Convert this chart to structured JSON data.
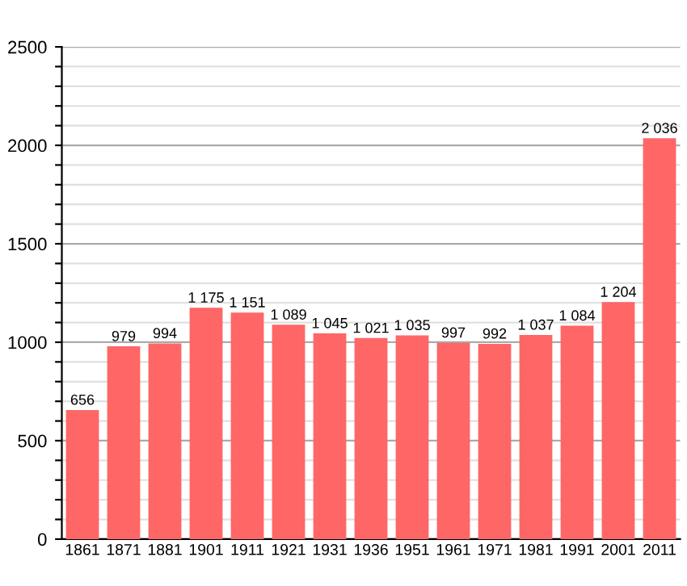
{
  "chart_data": {
    "type": "bar",
    "categories": [
      "1861",
      "1871",
      "1881",
      "1901",
      "1911",
      "1921",
      "1931",
      "1936",
      "1951",
      "1961",
      "1971",
      "1981",
      "1991",
      "2001",
      "2011"
    ],
    "values": [
      656,
      979,
      994,
      1175,
      1151,
      1089,
      1045,
      1021,
      1035,
      997,
      992,
      1037,
      1084,
      1204,
      2036
    ],
    "value_labels": [
      "656",
      "979",
      "994",
      "1 175",
      "1 151",
      "1 089",
      "1 045",
      "1 021",
      "1 035",
      "997",
      "992",
      "1 037",
      "1 084",
      "1 204",
      "2 036"
    ],
    "color": "#ff6666",
    "ylim": [
      0,
      2500
    ],
    "yticks": [
      0,
      {
        "value": 100,
        "label": null
      },
      {
        "value": 200,
        "label": null
      },
      {
        "value": 300,
        "label": null
      },
      {
        "value": 400,
        "label": null
      },
      500,
      {
        "value": 600,
        "label": null
      },
      {
        "value": 700,
        "label": null
      },
      {
        "value": 800,
        "label": null
      },
      {
        "value": 900,
        "label": null
      },
      1000,
      {
        "value": 1100,
        "label": null
      },
      {
        "value": 1200,
        "label": null
      },
      {
        "value": 1300,
        "label": null
      },
      {
        "value": 1400,
        "label": null
      },
      1500,
      {
        "value": 1600,
        "label": null
      },
      {
        "value": 1700,
        "label": null
      },
      {
        "value": 1800,
        "label": null
      },
      {
        "value": 1900,
        "label": null
      },
      2000,
      {
        "value": 2100,
        "label": null
      },
      {
        "value": 2200,
        "label": null
      },
      {
        "value": 2300,
        "label": null
      },
      {
        "value": 2400,
        "label": null
      },
      2500
    ],
    "grid": "y"
  }
}
